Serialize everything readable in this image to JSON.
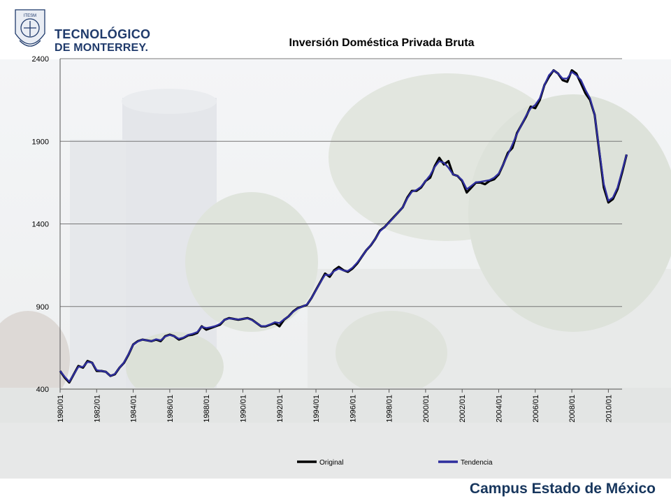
{
  "header": {
    "logo_line1": "TECNOLÓGICO",
    "logo_line2": "DE MONTERREY."
  },
  "footer": {
    "campus": "Campus Estado de México"
  },
  "colors": {
    "original": "#000000",
    "tendencia": "#2e2e9e",
    "brand": "#1f3a6b",
    "grid": "#777777"
  },
  "chart_data": {
    "type": "line",
    "title": "Inversión Doméstica Privada Bruta",
    "xlabel": "",
    "ylabel": "",
    "ylim": [
      400,
      2400
    ],
    "yticks": [
      400,
      900,
      1400,
      1900,
      2400
    ],
    "xticks": [
      "1980/01",
      "1982/01",
      "1984/01",
      "1986/01",
      "1988/01",
      "1990/01",
      "1992/01",
      "1994/01",
      "1996/01",
      "1998/01",
      "2000/01",
      "2002/01",
      "2004/01",
      "2006/01",
      "2008/01",
      "2010/01"
    ],
    "x_start_year": 1980,
    "x_end_year": 2010.75,
    "grid": "horizontal",
    "legend_position": "bottom",
    "series": [
      {
        "name": "Original",
        "values": [
          510,
          470,
          440,
          490,
          540,
          530,
          570,
          560,
          510,
          510,
          505,
          480,
          490,
          530,
          560,
          610,
          670,
          690,
          700,
          695,
          690,
          700,
          690,
          720,
          730,
          720,
          700,
          710,
          725,
          730,
          740,
          780,
          760,
          770,
          780,
          790,
          820,
          830,
          825,
          820,
          825,
          830,
          820,
          800,
          780,
          780,
          790,
          800,
          780,
          820,
          840,
          870,
          890,
          900,
          910,
          950,
          1000,
          1050,
          1100,
          1080,
          1120,
          1140,
          1120,
          1110,
          1130,
          1160,
          1200,
          1240,
          1270,
          1310,
          1360,
          1380,
          1410,
          1440,
          1470,
          1500,
          1560,
          1600,
          1600,
          1620,
          1660,
          1680,
          1750,
          1800,
          1760,
          1780,
          1700,
          1690,
          1660,
          1590,
          1620,
          1650,
          1650,
          1640,
          1660,
          1670,
          1700,
          1760,
          1830,
          1860,
          1950,
          2000,
          2050,
          2110,
          2100,
          2150,
          2240,
          2290,
          2330,
          2310,
          2270,
          2260,
          2330,
          2310,
          2250,
          2190,
          2150,
          2060,
          1840,
          1620,
          1530,
          1550,
          1610,
          1710,
          1820
        ]
      },
      {
        "name": "Tendencia",
        "values": [
          510,
          475,
          445,
          490,
          535,
          535,
          565,
          560,
          515,
          510,
          505,
          480,
          492,
          530,
          562,
          612,
          670,
          688,
          700,
          695,
          690,
          702,
          695,
          718,
          728,
          720,
          705,
          712,
          728,
          735,
          745,
          778,
          770,
          775,
          782,
          795,
          820,
          828,
          825,
          822,
          826,
          828,
          818,
          800,
          782,
          782,
          792,
          805,
          800,
          822,
          840,
          868,
          888,
          900,
          912,
          950,
          998,
          1048,
          1092,
          1090,
          1115,
          1130,
          1118,
          1115,
          1135,
          1165,
          1200,
          1240,
          1272,
          1310,
          1355,
          1380,
          1408,
          1438,
          1470,
          1500,
          1555,
          1595,
          1605,
          1625,
          1660,
          1695,
          1745,
          1780,
          1770,
          1740,
          1700,
          1690,
          1665,
          1610,
          1630,
          1652,
          1655,
          1660,
          1665,
          1680,
          1705,
          1760,
          1820,
          1880,
          1945,
          2000,
          2055,
          2100,
          2120,
          2160,
          2240,
          2300,
          2330,
          2310,
          2280,
          2280,
          2320,
          2300,
          2270,
          2210,
          2160,
          2060,
          1850,
          1640,
          1540,
          1560,
          1620,
          1720,
          1820
        ]
      }
    ]
  }
}
